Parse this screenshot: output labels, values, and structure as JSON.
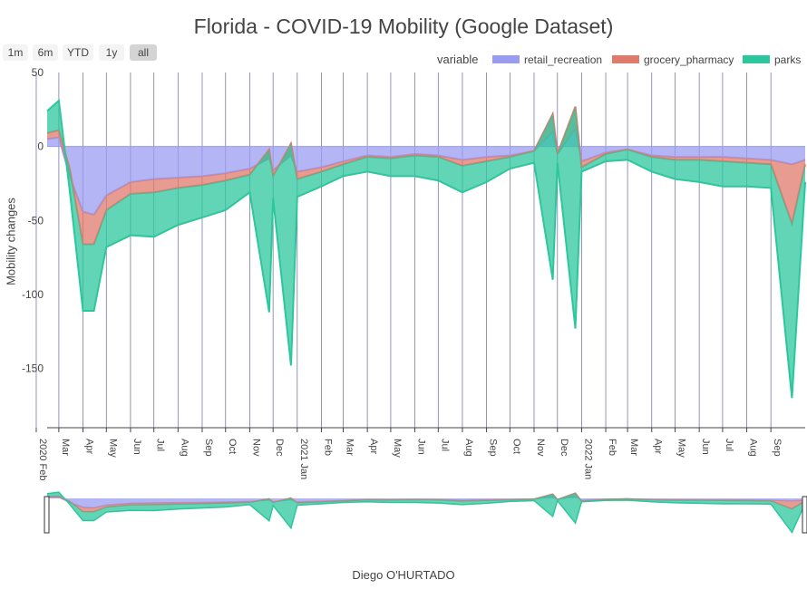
{
  "chart_data": {
    "type": "area",
    "title": "Florida - COVID-19 Mobility (Google Dataset)",
    "xlabel": "",
    "ylabel": "Mobility changes",
    "caption": "Diego O'HURTADO",
    "x_start": "2020-02-15",
    "x_end": "2022-10-15",
    "ylim": [
      -190,
      50
    ],
    "y_ticks": [
      50,
      0,
      -50,
      -100,
      -150
    ],
    "x_tick_labels": [
      {
        "label": "Feb",
        "year": "2020",
        "date": "2020-02-01"
      },
      {
        "label": "Mar",
        "date": "2020-03-01"
      },
      {
        "label": "Apr",
        "date": "2020-04-01"
      },
      {
        "label": "May",
        "date": "2020-05-01"
      },
      {
        "label": "Jun",
        "date": "2020-06-01"
      },
      {
        "label": "Jul",
        "date": "2020-07-01"
      },
      {
        "label": "Aug",
        "date": "2020-08-01"
      },
      {
        "label": "Sep",
        "date": "2020-09-01"
      },
      {
        "label": "Oct",
        "date": "2020-10-01"
      },
      {
        "label": "Nov",
        "date": "2020-11-01"
      },
      {
        "label": "Dec",
        "date": "2020-12-01"
      },
      {
        "label": "Jan",
        "year": "2021",
        "date": "2021-01-01"
      },
      {
        "label": "Feb",
        "date": "2021-02-01"
      },
      {
        "label": "Mar",
        "date": "2021-03-01"
      },
      {
        "label": "Apr",
        "date": "2021-04-01"
      },
      {
        "label": "May",
        "date": "2021-05-01"
      },
      {
        "label": "Jun",
        "date": "2021-06-01"
      },
      {
        "label": "Jul",
        "date": "2021-07-01"
      },
      {
        "label": "Aug",
        "date": "2021-08-01"
      },
      {
        "label": "Sep",
        "date": "2021-09-01"
      },
      {
        "label": "Oct",
        "date": "2021-10-01"
      },
      {
        "label": "Nov",
        "date": "2021-11-01"
      },
      {
        "label": "Dec",
        "date": "2021-12-01"
      },
      {
        "label": "Jan",
        "year": "2022",
        "date": "2022-01-01"
      },
      {
        "label": "Feb",
        "date": "2022-02-01"
      },
      {
        "label": "Mar",
        "date": "2022-03-01"
      },
      {
        "label": "Apr",
        "date": "2022-04-01"
      },
      {
        "label": "May",
        "date": "2022-05-01"
      },
      {
        "label": "Jun",
        "date": "2022-06-01"
      },
      {
        "label": "Jul",
        "date": "2022-07-01"
      },
      {
        "label": "Aug",
        "date": "2022-08-01"
      },
      {
        "label": "Sep",
        "date": "2022-09-01"
      }
    ],
    "legend": {
      "title": "variable",
      "position": "top-right"
    },
    "stacked": true,
    "series": [
      {
        "name": "retail_recreation",
        "color": "#9a9cf2",
        "points": [
          [
            "2020-02-15",
            5
          ],
          [
            "2020-03-01",
            6
          ],
          [
            "2020-03-15",
            -20
          ],
          [
            "2020-04-01",
            -44
          ],
          [
            "2020-04-15",
            -46
          ],
          [
            "2020-05-01",
            -33
          ],
          [
            "2020-06-01",
            -24
          ],
          [
            "2020-07-01",
            -22
          ],
          [
            "2020-08-01",
            -21
          ],
          [
            "2020-09-01",
            -20
          ],
          [
            "2020-10-01",
            -18
          ],
          [
            "2020-11-01",
            -15
          ],
          [
            "2020-11-26",
            -8
          ],
          [
            "2020-12-01",
            -16
          ],
          [
            "2020-12-24",
            -6
          ],
          [
            "2021-01-01",
            -17
          ],
          [
            "2021-02-01",
            -14
          ],
          [
            "2021-03-01",
            -10
          ],
          [
            "2021-04-01",
            -6
          ],
          [
            "2021-05-01",
            -7
          ],
          [
            "2021-06-01",
            -5
          ],
          [
            "2021-07-01",
            -6
          ],
          [
            "2021-08-01",
            -9
          ],
          [
            "2021-09-01",
            -7
          ],
          [
            "2021-10-01",
            -6
          ],
          [
            "2021-11-01",
            -3
          ],
          [
            "2021-11-25",
            10
          ],
          [
            "2021-12-01",
            -5
          ],
          [
            "2021-12-24",
            12
          ],
          [
            "2022-01-01",
            -10
          ],
          [
            "2022-02-01",
            -4
          ],
          [
            "2022-03-01",
            -2
          ],
          [
            "2022-04-01",
            -6
          ],
          [
            "2022-05-01",
            -7
          ],
          [
            "2022-06-01",
            -7
          ],
          [
            "2022-07-01",
            -7
          ],
          [
            "2022-08-01",
            -8
          ],
          [
            "2022-09-01",
            -9
          ],
          [
            "2022-09-28",
            -12
          ],
          [
            "2022-10-15",
            -9
          ]
        ]
      },
      {
        "name": "grocery_pharmacy",
        "color": "#e07a6b",
        "points": [
          [
            "2020-02-15",
            4
          ],
          [
            "2020-03-01",
            5
          ],
          [
            "2020-03-15",
            5
          ],
          [
            "2020-04-01",
            -22
          ],
          [
            "2020-04-15",
            -20
          ],
          [
            "2020-05-01",
            -10
          ],
          [
            "2020-06-01",
            -8
          ],
          [
            "2020-07-01",
            -9
          ],
          [
            "2020-08-01",
            -7
          ],
          [
            "2020-09-01",
            -6
          ],
          [
            "2020-10-01",
            -5
          ],
          [
            "2020-11-01",
            -4
          ],
          [
            "2020-11-26",
            6
          ],
          [
            "2020-12-01",
            -4
          ],
          [
            "2020-12-24",
            8
          ],
          [
            "2021-01-01",
            -5
          ],
          [
            "2021-02-01",
            -3
          ],
          [
            "2021-03-01",
            -2
          ],
          [
            "2021-04-01",
            -1
          ],
          [
            "2021-05-01",
            -1
          ],
          [
            "2021-06-01",
            -1
          ],
          [
            "2021-07-01",
            -1
          ],
          [
            "2021-08-01",
            -4
          ],
          [
            "2021-09-01",
            -3
          ],
          [
            "2021-10-01",
            -1
          ],
          [
            "2021-11-01",
            0
          ],
          [
            "2021-11-25",
            12
          ],
          [
            "2021-12-01",
            0
          ],
          [
            "2021-12-24",
            15
          ],
          [
            "2022-01-01",
            -4
          ],
          [
            "2022-02-01",
            -1
          ],
          [
            "2022-03-01",
            0
          ],
          [
            "2022-04-01",
            -1
          ],
          [
            "2022-05-01",
            -2
          ],
          [
            "2022-06-01",
            -2
          ],
          [
            "2022-07-01",
            -3
          ],
          [
            "2022-08-01",
            -3
          ],
          [
            "2022-09-01",
            -3
          ],
          [
            "2022-09-28",
            -40
          ],
          [
            "2022-10-15",
            -3
          ]
        ]
      },
      {
        "name": "parks",
        "color": "#2cc79c",
        "points": [
          [
            "2020-02-15",
            15
          ],
          [
            "2020-03-01",
            20
          ],
          [
            "2020-03-15",
            -15
          ],
          [
            "2020-04-01",
            -45
          ],
          [
            "2020-04-15",
            -45
          ],
          [
            "2020-05-01",
            -25
          ],
          [
            "2020-06-01",
            -28
          ],
          [
            "2020-07-01",
            -30
          ],
          [
            "2020-08-01",
            -25
          ],
          [
            "2020-09-01",
            -22
          ],
          [
            "2020-10-01",
            -20
          ],
          [
            "2020-11-01",
            -12
          ],
          [
            "2020-11-26",
            -110
          ],
          [
            "2020-12-01",
            -15
          ],
          [
            "2020-12-24",
            -150
          ],
          [
            "2021-01-01",
            -12
          ],
          [
            "2021-02-01",
            -10
          ],
          [
            "2021-03-01",
            -8
          ],
          [
            "2021-04-01",
            -10
          ],
          [
            "2021-05-01",
            -12
          ],
          [
            "2021-06-01",
            -14
          ],
          [
            "2021-07-01",
            -16
          ],
          [
            "2021-08-01",
            -18
          ],
          [
            "2021-09-01",
            -14
          ],
          [
            "2021-10-01",
            -8
          ],
          [
            "2021-11-01",
            -8
          ],
          [
            "2021-11-25",
            -112
          ],
          [
            "2021-12-01",
            -6
          ],
          [
            "2021-12-24",
            -150
          ],
          [
            "2022-01-01",
            -3
          ],
          [
            "2022-02-01",
            -5
          ],
          [
            "2022-03-01",
            -7
          ],
          [
            "2022-04-01",
            -10
          ],
          [
            "2022-05-01",
            -13
          ],
          [
            "2022-06-01",
            -15
          ],
          [
            "2022-07-01",
            -17
          ],
          [
            "2022-08-01",
            -16
          ],
          [
            "2022-09-01",
            -16
          ],
          [
            "2022-09-28",
            -118
          ],
          [
            "2022-10-15",
            -12
          ]
        ]
      }
    ]
  },
  "range_selector": {
    "buttons": [
      "1m",
      "6m",
      "YTD",
      "1y",
      "all"
    ],
    "active": "all"
  }
}
